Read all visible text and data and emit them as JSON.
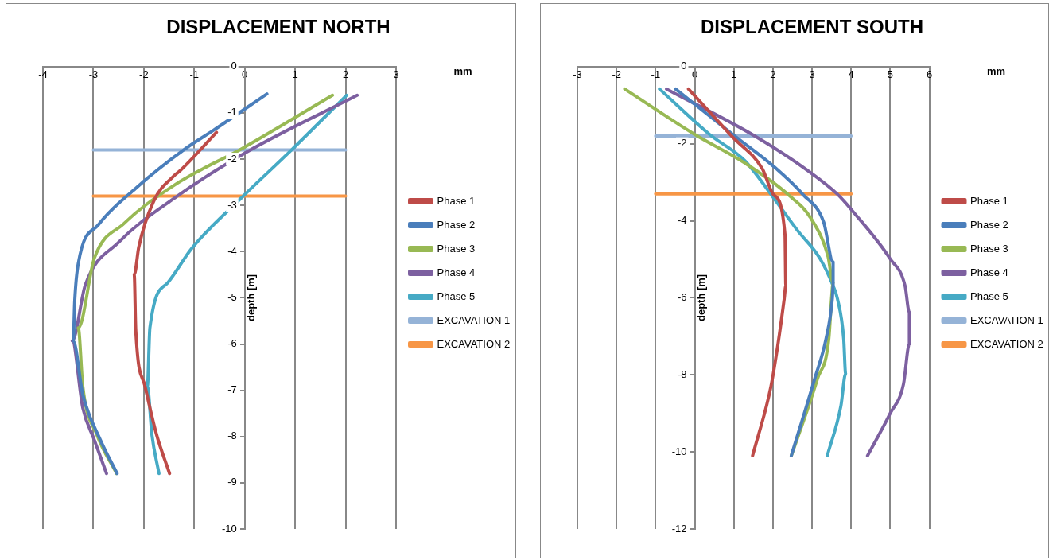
{
  "chart_data": [
    {
      "type": "line",
      "title": "DISPLACEMENT NORTH",
      "xlabel": "mm",
      "ylabel": "depth [m]",
      "xlim": [
        -4,
        3
      ],
      "xticks": [
        -4,
        -3,
        -2,
        -1,
        0,
        1,
        2,
        3
      ],
      "ylim": [
        -10,
        0
      ],
      "yticks": [
        0,
        -1,
        -2,
        -3,
        -4,
        -5,
        -6,
        -7,
        -8,
        -9,
        -10
      ],
      "grid": "x",
      "legend": "right",
      "series": [
        {
          "name": "Phase 1",
          "color": "#be4b48",
          "x": [
            -0.56,
            -1.28,
            -1.4,
            -1.8,
            -2.1,
            -2.19,
            -2.16,
            -1.98,
            -1.75,
            -1.49
          ],
          "values": [
            -1.42,
            -2.25,
            -2.36,
            -2.9,
            -3.9,
            -4.5,
            -5.7,
            -6.9,
            -7.95,
            -8.8
          ]
        },
        {
          "name": "Phase 2",
          "color": "#4a7ebb",
          "x": [
            0.44,
            -0.61,
            -1.17,
            -2.16,
            -2.9,
            -3.3,
            -3.37,
            -3.4,
            -3.21,
            -2.86,
            -2.53
          ],
          "values": [
            -0.59,
            -1.37,
            -1.77,
            -2.63,
            -3.42,
            -4.26,
            -5.06,
            -5.93,
            -7.09,
            -8.08,
            -8.8
          ]
        },
        {
          "name": "Phase 3",
          "color": "#98b954",
          "x": [
            1.74,
            -0.05,
            -1.35,
            -2.4,
            -2.98,
            -3.3,
            -3.21,
            -2.93,
            -2.54
          ],
          "values": [
            -0.62,
            -1.77,
            -2.53,
            -3.4,
            -4.14,
            -5.65,
            -6.92,
            -7.96,
            -8.8
          ]
        },
        {
          "name": "Phase 4",
          "color": "#7d60a0",
          "x": [
            2.23,
            0.05,
            -1.35,
            -2.5,
            -3.16,
            -3.42,
            -3.21,
            -2.98,
            -2.74
          ],
          "values": [
            -0.62,
            -1.84,
            -2.81,
            -3.8,
            -4.72,
            -5.93,
            -7.38,
            -8.08,
            -8.8
          ]
        },
        {
          "name": "Phase 5",
          "color": "#46aac5",
          "x": [
            2.02,
            0.93,
            -0.03,
            -1.05,
            -1.53,
            -1.88,
            -1.93,
            -1.84,
            -1.7
          ],
          "values": [
            -0.62,
            -1.8,
            -2.8,
            -3.93,
            -4.68,
            -5.65,
            -6.92,
            -7.96,
            -8.8
          ]
        },
        {
          "name": "EXCAVATION 1",
          "color": "#95b3d7",
          "x": [
            -3,
            2
          ],
          "values": [
            -1.8,
            -1.8
          ]
        },
        {
          "name": "EXCAVATION 2",
          "color": "#f79646",
          "x": [
            -3,
            2
          ],
          "values": [
            -2.8,
            -2.8
          ]
        }
      ]
    },
    {
      "type": "line",
      "title": "DISPLACEMENT SOUTH",
      "xlabel": "mm",
      "ylabel": "depth [m]",
      "xlim": [
        -3,
        6
      ],
      "xticks": [
        -3,
        -2,
        -1,
        0,
        1,
        2,
        3,
        4,
        5,
        6
      ],
      "ylim": [
        -12,
        0
      ],
      "yticks": [
        0,
        -2,
        -4,
        -6,
        -8,
        -10,
        -12
      ],
      "grid": "x",
      "legend": "right",
      "series": [
        {
          "name": "Phase 1",
          "color": "#be4b48",
          "x": [
            -0.16,
            0.96,
            1.73,
            2.02,
            2.31,
            2.33,
            2.29,
            2.13,
            1.95,
            1.48
          ],
          "values": [
            -0.58,
            -1.82,
            -2.65,
            -3.33,
            -4.37,
            -5.69,
            -6.02,
            -7.2,
            -8.3,
            -10.1
          ]
        },
        {
          "name": "Phase 2",
          "color": "#4a7ebb",
          "x": [
            -0.49,
            1.05,
            2.02,
            2.76,
            3.3,
            3.54,
            3.54,
            3.52,
            3.36,
            3.07,
            2.47
          ],
          "values": [
            -0.58,
            -1.82,
            -2.59,
            -3.31,
            -4.04,
            -5.07,
            -5.69,
            -6.02,
            -7.06,
            -8.1,
            -10.1
          ]
        },
        {
          "name": "Phase 3",
          "color": "#98b954",
          "x": [
            -1.79,
            0,
            1.28,
            2.4,
            2.98,
            3.41,
            3.54,
            3.5,
            3.43,
            3.14,
            2.85,
            2.47
          ],
          "values": [
            -0.58,
            -1.76,
            -2.5,
            -3.33,
            -3.95,
            -4.93,
            -5.61,
            -6.02,
            -7.06,
            -8.1,
            -9,
            -10.1
          ]
        },
        {
          "name": "Phase 4",
          "color": "#7d60a0",
          "x": [
            -0.72,
            1.57,
            2.91,
            3.65,
            4.04,
            5,
            5.38,
            5.49,
            5.49,
            5.34,
            5,
            4.42
          ],
          "values": [
            -0.58,
            -1.82,
            -2.71,
            -3.31,
            -3.75,
            -4.99,
            -5.69,
            -6.38,
            -7.2,
            -8.24,
            -9,
            -10.1
          ]
        },
        {
          "name": "Phase 5",
          "color": "#46aac5",
          "x": [
            -0.9,
            0.38,
            1.28,
            2.02,
            2.62,
            3.21,
            3.54,
            3.65,
            3.81,
            3.86,
            3.74,
            3.39
          ],
          "values": [
            -0.58,
            -1.76,
            -2.44,
            -3.41,
            -4.24,
            -4.99,
            -5.69,
            -6.02,
            -7.06,
            -7.97,
            -8.8,
            -10.1
          ]
        },
        {
          "name": "EXCAVATION 1",
          "color": "#95b3d7",
          "x": [
            -1,
            4
          ],
          "values": [
            -1.8,
            -1.8
          ]
        },
        {
          "name": "EXCAVATION 2",
          "color": "#f79646",
          "x": [
            -1,
            4
          ],
          "values": [
            -3.3,
            -3.3
          ]
        }
      ]
    }
  ]
}
